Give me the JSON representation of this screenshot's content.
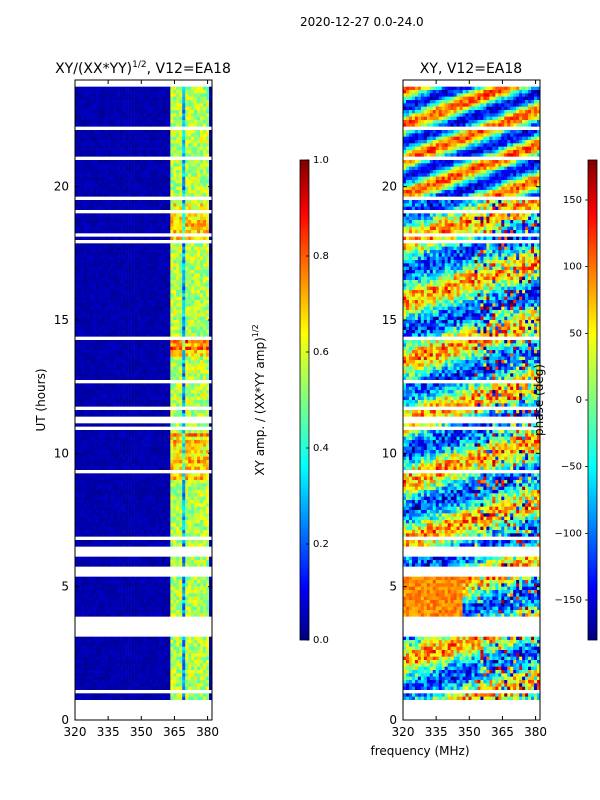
{
  "page_title": "2020-12-27 0.0-24.0",
  "chart_data": [
    {
      "type": "heatmap",
      "title_main": "XY/(XX*YY)",
      "title_exponent": "1/2",
      "title_suffix": ", V12=EA18",
      "xlabel": "",
      "ylabel": "UT (hours)",
      "xlim": [
        320,
        382
      ],
      "ylim": [
        0,
        24
      ],
      "xticks": [
        "320",
        "335",
        "350",
        "365",
        "380"
      ],
      "yticks": [
        "0",
        "5",
        "10",
        "15",
        "20"
      ],
      "colorbar": {
        "label_main": "XY amp. / (XX*YY amp)",
        "label_exponent": "1/2",
        "range": [
          0.0,
          1.0
        ],
        "ticks": [
          "0.0",
          "0.2",
          "0.4",
          "0.6",
          "0.8",
          "1.0"
        ]
      }
    },
    {
      "type": "heatmap",
      "title": "XY, V12=EA18",
      "xlabel": "frequency (MHz)",
      "ylabel": "",
      "xlim": [
        320,
        382
      ],
      "ylim": [
        0,
        24
      ],
      "xticks": [
        "320",
        "335",
        "350",
        "365",
        "380"
      ],
      "yticks": [
        "0",
        "5",
        "10",
        "15",
        "20"
      ],
      "colorbar": {
        "label": "phase (deg)",
        "range": [
          -180,
          180
        ],
        "ticks": [
          "−150",
          "−100",
          "−50",
          "0",
          "50",
          "100",
          "150"
        ]
      }
    }
  ],
  "colors": {
    "jet_low": "#00007f",
    "jet_mid": "#7fff7f",
    "jet_high": "#7f0000"
  }
}
